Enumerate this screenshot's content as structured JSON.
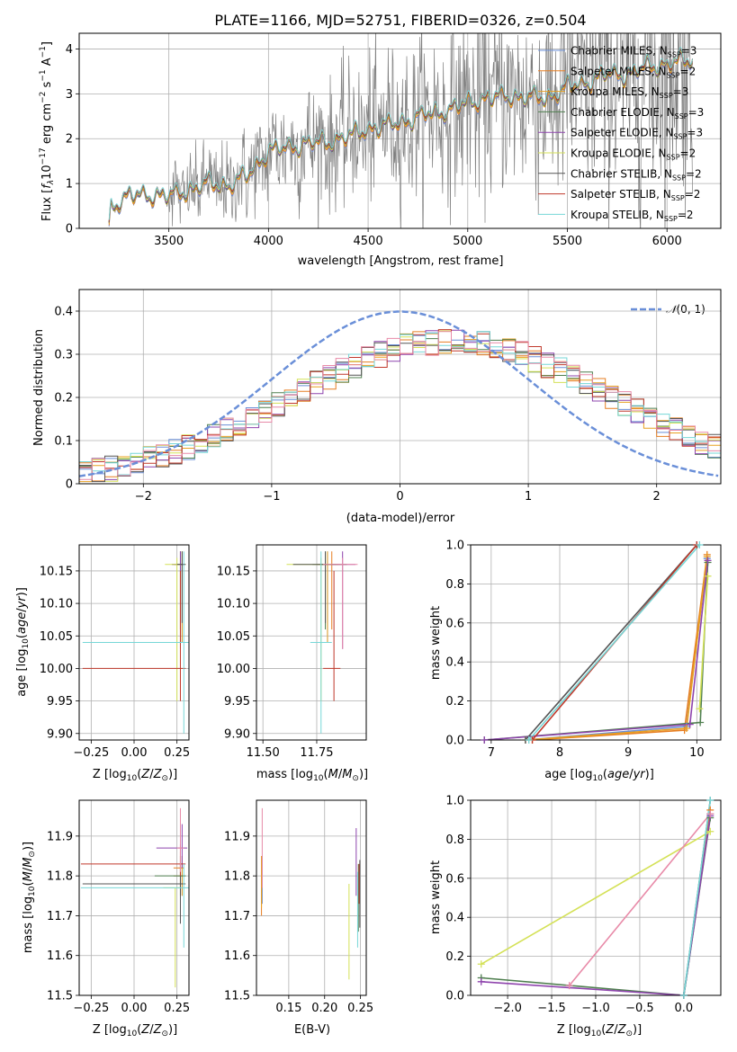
{
  "title": "PLATE=1166, MJD=52751, FIBERID=0326, z=0.504",
  "colors": {
    "Chabrier MILES": "#6a8fd8",
    "Salpeter MILES": "#e67e22",
    "Kroupa MILES": "#e8a020",
    "Chabrier ELODIE": "#4f7f4f",
    "Salpeter ELODIE": "#8e44ad",
    "Kroupa ELODIE": "#d4e157",
    "Chabrier STELIB": "#555555",
    "Salpeter STELIB": "#c0392b",
    "Kroupa STELIB": "#76d7d7",
    "pink": "#e88aa8",
    "data": "#808080",
    "normal": "#6a8fd8"
  },
  "chart_data": [
    {
      "type": "line",
      "id": "spectrum",
      "title": "PLATE=1166, MJD=52751, FIBERID=0326, z=0.504",
      "xlabel": "wavelength [Angstrom, rest frame]",
      "ylabel": "Flux [f_λ 10^-17 erg cm^-2 s^-1 A^-1]",
      "xlim": [
        3050,
        6270
      ],
      "ylim": [
        0,
        4.35
      ],
      "xticks": [
        3500,
        4000,
        4500,
        5000,
        5500,
        6000
      ],
      "yticks": [
        0,
        1,
        2,
        3,
        4
      ],
      "legend": [
        "Chabrier MILES, N_SSP=3",
        "Salpeter MILES, N_SSP=2",
        "Kroupa MILES, N_SSP=3",
        "Chabrier ELODIE, N_SSP=3",
        "Salpeter ELODIE, N_SSP=3",
        "Kroupa ELODIE, N_SSP=2",
        "Chabrier STELIB, N_SSP=2",
        "Salpeter STELIB, N_SSP=2",
        "Kroupa STELIB, N_SSP=2"
      ],
      "legend_position": "right",
      "model_knots": {
        "x": [
          3200,
          3210,
          3300,
          3400,
          3500,
          3600,
          3700,
          3800,
          3900,
          4000,
          4100,
          4200,
          4300,
          4400,
          4500,
          4600,
          4700,
          4800,
          4900,
          5000,
          5100,
          5200,
          5300,
          5400,
          5500,
          5600,
          5700,
          5800,
          5900,
          6000,
          6100
        ],
        "y": [
          0,
          0.5,
          0.72,
          0.75,
          0.72,
          0.85,
          1.0,
          0.95,
          1.2,
          1.72,
          1.8,
          1.9,
          1.92,
          2.05,
          2.22,
          2.3,
          2.4,
          2.55,
          2.62,
          2.8,
          2.9,
          2.95,
          2.92,
          2.9,
          3.15,
          3.25,
          3.45,
          3.42,
          3.6,
          3.65,
          3.75
        ]
      },
      "data_noise_start": 3500,
      "data_x_end": 6130
    },
    {
      "type": "line",
      "id": "residuals",
      "xlabel": "(data-model)/error",
      "ylabel": "Normed distribution",
      "xlim": [
        -2.5,
        2.5
      ],
      "ylim": [
        0,
        0.45
      ],
      "xticks": [
        -2,
        -1,
        0,
        1,
        2
      ],
      "yticks": [
        0.0,
        0.1,
        0.2,
        0.3,
        0.4
      ],
      "legend": [
        "N(0,1)"
      ],
      "legend_position": "top-right",
      "normal_curve": {
        "mean": 0,
        "sigma": 1
      }
    },
    {
      "type": "scatter",
      "id": "age-vs-Z",
      "xlabel": "Z [log10(Z/Z⊙)]",
      "ylabel": "age [log10(age/yr)]",
      "xlim": [
        -0.32,
        0.32
      ],
      "ylim": [
        9.89,
        10.19
      ],
      "xticks": [
        -0.25,
        0.0,
        0.25
      ],
      "xticklabels": [
        "−0.25",
        "0.00",
        "0.25"
      ],
      "yticks": [
        9.9,
        9.95,
        10.0,
        10.05,
        10.1,
        10.15
      ],
      "yticklabels": [
        "9.90",
        "9.95",
        "10.00",
        "10.05",
        "10.10",
        "10.15"
      ],
      "points": [
        {
          "model": "Chabrier MILES",
          "x": 0.28,
          "xerr": [
            0.05,
            0.02
          ],
          "y": 10.16,
          "yerr": [
            0.12,
            0.02
          ]
        },
        {
          "model": "Salpeter MILES",
          "x": 0.27,
          "xerr": [
            0.04,
            0.02
          ],
          "y": 10.16,
          "yerr": [
            0.1,
            0.02
          ]
        },
        {
          "model": "Kroupa MILES",
          "x": 0.28,
          "xerr": [
            0.05,
            0.02
          ],
          "y": 10.16,
          "yerr": [
            0.12,
            0.02
          ]
        },
        {
          "model": "Chabrier ELODIE",
          "x": 0.27,
          "xerr": [
            0.05,
            0.02
          ],
          "y": 10.16,
          "yerr": [
            0.1,
            0.02
          ]
        },
        {
          "model": "Salpeter ELODIE",
          "x": 0.27,
          "xerr": [
            0.05,
            0.02
          ],
          "y": 10.16,
          "yerr": [
            0.13,
            0.02
          ]
        },
        {
          "model": "Kroupa ELODIE",
          "x": 0.25,
          "xerr": [
            0.07,
            0.02
          ],
          "y": 10.16,
          "yerr": [
            0.21,
            0.01
          ]
        },
        {
          "model": "Chabrier STELIB",
          "x": 0.28,
          "xerr": [
            0.03,
            0.02
          ],
          "y": 10.16,
          "yerr": [
            0.09,
            0.02
          ]
        },
        {
          "model": "Salpeter STELIB",
          "x": 0.27,
          "xerr": [
            0.57,
            0.03
          ],
          "y": 10.0,
          "yerr": [
            0.05,
            0.15
          ]
        },
        {
          "model": "Kroupa STELIB",
          "x": 0.29,
          "xerr": [
            0.59,
            0.03
          ],
          "y": 10.04,
          "yerr": [
            0.14,
            0.14
          ]
        }
      ]
    },
    {
      "type": "scatter",
      "id": "age-vs-mass",
      "xlabel": "mass [log10(M/M⊙)]",
      "xlim": [
        11.47,
        11.98
      ],
      "ylim": [
        9.89,
        10.19
      ],
      "xticks": [
        11.5,
        11.75
      ],
      "xticklabels": [
        "11.50",
        "11.75"
      ],
      "yticks": [
        9.9,
        9.95,
        10.0,
        10.05,
        10.1,
        10.15
      ],
      "yticklabels": [
        "9.90",
        "9.95",
        "10.00",
        "10.05",
        "10.10",
        "10.15"
      ],
      "points": [
        {
          "model": "Chabrier MILES",
          "x": 11.8,
          "xerr": [
            0.05,
            0.05
          ],
          "y": 10.16,
          "yerr": [
            0.12,
            0.02
          ]
        },
        {
          "model": "Salpeter MILES",
          "x": 11.82,
          "xerr": [
            0.05,
            0.04
          ],
          "y": 10.16,
          "yerr": [
            0.1,
            0.02
          ]
        },
        {
          "model": "Kroupa MILES",
          "x": 11.8,
          "xerr": [
            0.05,
            0.05
          ],
          "y": 10.16,
          "yerr": [
            0.12,
            0.02
          ]
        },
        {
          "model": "Chabrier ELODIE",
          "x": 11.79,
          "xerr": [
            0.06,
            0.05
          ],
          "y": 10.16,
          "yerr": [
            0.1,
            0.02
          ]
        },
        {
          "model": "Salpeter ELODIE",
          "x": 11.87,
          "xerr": [
            0.05,
            0.06
          ],
          "y": 10.16,
          "yerr": [
            0.13,
            0.02
          ]
        },
        {
          "model": "Kroupa ELODIE",
          "x": 11.77,
          "xerr": [
            0.16,
            0.05
          ],
          "y": 10.16,
          "yerr": [
            0.21,
            0.01
          ]
        },
        {
          "model": "Chabrier STELIB",
          "x": 11.79,
          "xerr": [
            0.15,
            0.1
          ],
          "y": 10.16,
          "yerr": [
            0.09,
            0.02
          ]
        },
        {
          "model": "Salpeter STELIB",
          "x": 11.83,
          "xerr": [
            0.05,
            0.03
          ],
          "y": 10.0,
          "yerr": [
            0.05,
            0.15
          ]
        },
        {
          "model": "Kroupa STELIB",
          "x": 11.77,
          "xerr": [
            0.05,
            0.05
          ],
          "y": 10.04,
          "yerr": [
            0.14,
            0.14
          ]
        },
        {
          "model": "pink",
          "x": 11.87,
          "xerr": [
            0.09,
            0.07
          ],
          "y": 10.16,
          "yerr": [
            0.13,
            0.01
          ]
        }
      ]
    },
    {
      "type": "line",
      "id": "mass-weight-vs-age",
      "xlabel": "age [log10(age/yr)]",
      "ylabel": "mass weight",
      "xlim": [
        6.7,
        10.35
      ],
      "ylim": [
        0,
        1.0
      ],
      "xticks": [
        7,
        8,
        9,
        10
      ],
      "yticks": [
        0.0,
        0.2,
        0.4,
        0.6,
        0.8,
        1.0
      ],
      "yticklabels": [
        "0.0",
        "0.2",
        "0.4",
        "0.6",
        "0.8",
        "1.0"
      ],
      "series": [
        {
          "model": "Chabrier MILES",
          "x": [
            7.5,
            9.85,
            10.15
          ],
          "y": [
            0.0,
            0.07,
            0.93
          ]
        },
        {
          "model": "Salpeter MILES",
          "x": [
            7.6,
            9.82,
            10.15
          ],
          "y": [
            0.0,
            0.05,
            0.95
          ]
        },
        {
          "model": "Kroupa MILES",
          "x": [
            7.5,
            9.85,
            10.15
          ],
          "y": [
            0.0,
            0.06,
            0.94
          ]
        },
        {
          "model": "Chabrier ELODIE",
          "x": [
            6.9,
            10.05,
            10.16
          ],
          "y": [
            0.0,
            0.09,
            0.91
          ]
        },
        {
          "model": "Salpeter ELODIE",
          "x": [
            6.9,
            9.9,
            10.16
          ],
          "y": [
            0.0,
            0.08,
            0.92
          ]
        },
        {
          "model": "Kroupa ELODIE",
          "x": [
            10.04,
            10.16
          ],
          "y": [
            0.16,
            0.84
          ]
        },
        {
          "model": "Chabrier STELIB",
          "x": [
            7.5,
            10.0
          ],
          "y": [
            0.0,
            1.0
          ]
        },
        {
          "model": "Salpeter STELIB",
          "x": [
            7.6,
            10.0
          ],
          "y": [
            0.0,
            1.0
          ]
        },
        {
          "model": "Kroupa STELIB",
          "x": [
            7.55,
            10.04
          ],
          "y": [
            0.0,
            1.0
          ]
        }
      ]
    },
    {
      "type": "scatter",
      "id": "mass-vs-Z",
      "xlabel": "Z [log10(Z/Z⊙)]",
      "ylabel": "mass [log10(M/M⊙)]",
      "xlim": [
        -0.32,
        0.32
      ],
      "ylim": [
        11.5,
        11.99
      ],
      "xticks": [
        -0.25,
        0.0,
        0.25
      ],
      "xticklabels": [
        "−0.25",
        "0.00",
        "0.25"
      ],
      "yticks": [
        11.5,
        11.6,
        11.7,
        11.8,
        11.9
      ],
      "yticklabels": [
        "11.5",
        "11.6",
        "11.7",
        "11.8",
        "11.9"
      ],
      "points": [
        {
          "model": "Chabrier MILES",
          "x": 0.28,
          "xerr": [
            0.05,
            0.02
          ],
          "y": 11.8,
          "yerr": [
            0.05,
            0.05
          ]
        },
        {
          "model": "Salpeter MILES",
          "x": 0.27,
          "xerr": [
            0.04,
            0.02
          ],
          "y": 11.82,
          "yerr": [
            0.05,
            0.04
          ]
        },
        {
          "model": "Kroupa MILES",
          "x": 0.28,
          "xerr": [
            0.05,
            0.02
          ],
          "y": 11.8,
          "yerr": [
            0.05,
            0.05
          ]
        },
        {
          "model": "Chabrier ELODIE",
          "x": 0.27,
          "xerr": [
            0.15,
            0.03
          ],
          "y": 11.8,
          "yerr": [
            0.05,
            0.05
          ]
        },
        {
          "model": "Salpeter ELODIE",
          "x": 0.28,
          "xerr": [
            0.15,
            0.03
          ],
          "y": 11.87,
          "yerr": [
            0.05,
            0.06
          ]
        },
        {
          "model": "Kroupa ELODIE",
          "x": 0.24,
          "xerr": [
            0.07,
            0.03
          ],
          "y": 11.77,
          "yerr": [
            0.25,
            0.0
          ]
        },
        {
          "model": "Chabrier STELIB",
          "x": 0.27,
          "xerr": [
            0.57,
            0.03
          ],
          "y": 11.78,
          "yerr": [
            0.1,
            0.05
          ]
        },
        {
          "model": "Salpeter STELIB",
          "x": 0.27,
          "xerr": [
            0.58,
            0.03
          ],
          "y": 11.83,
          "yerr": [
            0.03,
            0.05
          ]
        },
        {
          "model": "Kroupa STELIB",
          "x": 0.29,
          "xerr": [
            0.6,
            0.03
          ],
          "y": 11.77,
          "yerr": [
            0.15,
            0.06
          ]
        },
        {
          "model": "pink",
          "x": 0.27,
          "xerr": [
            0.02,
            0.02
          ],
          "y": 11.87,
          "yerr": [
            0.06,
            0.1
          ]
        }
      ]
    },
    {
      "type": "scatter",
      "id": "mass-vs-EBV",
      "xlabel": "E(B-V)",
      "xlim": [
        0.105,
        0.258
      ],
      "ylim": [
        11.5,
        11.99
      ],
      "xticks": [
        0.15,
        0.2,
        0.25
      ],
      "xticklabels": [
        "0.15",
        "0.20",
        "0.25"
      ],
      "yticks": [
        11.5,
        11.6,
        11.7,
        11.8,
        11.9
      ],
      "yticklabels": [
        "11.5",
        "11.6",
        "11.7",
        "11.8",
        "11.9"
      ],
      "points": [
        {
          "model": "Chabrier MILES",
          "x": 0.113,
          "y": 11.8,
          "yerr": [
            0.07,
            0.05
          ]
        },
        {
          "model": "Salpeter MILES",
          "x": 0.112,
          "y": 11.8,
          "yerr": [
            0.1,
            0.05
          ]
        },
        {
          "model": "Kroupa MILES",
          "x": 0.112,
          "y": 11.8,
          "yerr": [
            0.08,
            0.05
          ]
        },
        {
          "model": "pink",
          "x": 0.113,
          "y": 11.87,
          "yerr": [
            0.1,
            0.1
          ]
        },
        {
          "model": "Chabrier ELODIE",
          "x": 0.247,
          "y": 11.78,
          "yerr": [
            0.12,
            0.05
          ]
        },
        {
          "model": "Salpeter ELODIE",
          "x": 0.244,
          "y": 11.85,
          "yerr": [
            0.1,
            0.07
          ]
        },
        {
          "model": "Kroupa ELODIE",
          "x": 0.234,
          "y": 11.66,
          "yerr": [
            0.12,
            0.12
          ]
        },
        {
          "model": "Chabrier STELIB",
          "x": 0.249,
          "y": 11.74,
          "yerr": [
            0.07,
            0.1
          ]
        },
        {
          "model": "Salpeter STELIB",
          "x": 0.248,
          "y": 11.78,
          "yerr": [
            0.05,
            0.05
          ]
        },
        {
          "model": "Kroupa STELIB",
          "x": 0.246,
          "y": 11.75,
          "yerr": [
            0.13,
            0.06
          ]
        }
      ]
    },
    {
      "type": "line",
      "id": "mass-weight-vs-Z",
      "xlabel": "Z [log10(Z/Z⊙)]",
      "ylabel": "mass weight",
      "xlim": [
        -2.42,
        0.42
      ],
      "ylim": [
        0,
        1.0
      ],
      "xticks": [
        -2.0,
        -1.5,
        -1.0,
        -0.5,
        0.0
      ],
      "xticklabels": [
        "−2.0",
        "−1.5",
        "−1.0",
        "−0.5",
        "0.0"
      ],
      "yticks": [
        0.0,
        0.2,
        0.4,
        0.6,
        0.8,
        1.0
      ],
      "yticklabels": [
        "0.0",
        "0.2",
        "0.4",
        "0.6",
        "0.8",
        "1.0"
      ],
      "series": [
        {
          "model": "Chabrier MILES",
          "x": [
            0.0,
            0.3
          ],
          "y": [
            0.0,
            0.93
          ]
        },
        {
          "model": "Salpeter MILES",
          "x": [
            0.0,
            0.3
          ],
          "y": [
            0.0,
            0.95
          ]
        },
        {
          "model": "Chabrier ELODIE",
          "x": [
            -2.3,
            0.0,
            0.3
          ],
          "y": [
            0.09,
            0.0,
            0.91
          ]
        },
        {
          "model": "Salpeter ELODIE",
          "x": [
            -2.3,
            0.0,
            0.3
          ],
          "y": [
            0.07,
            0.0,
            0.92
          ]
        },
        {
          "model": "Kroupa ELODIE",
          "x": [
            -2.3,
            0.3
          ],
          "y": [
            0.16,
            0.84
          ]
        },
        {
          "model": "pink",
          "x": [
            -1.3,
            0.3
          ],
          "y": [
            0.05,
            0.93
          ]
        },
        {
          "model": "Chabrier STELIB",
          "x": [
            0.0,
            0.3
          ],
          "y": [
            0.0,
            1.0
          ]
        },
        {
          "model": "Kroupa STELIB",
          "x": [
            0.0,
            0.3
          ],
          "y": [
            0.0,
            1.0
          ]
        }
      ]
    }
  ]
}
